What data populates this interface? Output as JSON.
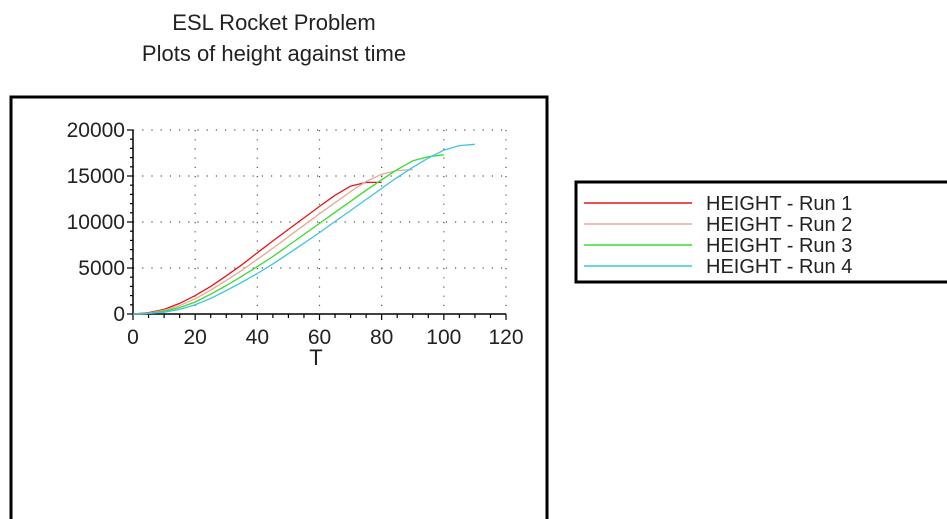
{
  "chart_data": {
    "type": "line",
    "title": "ESL Rocket Problem",
    "subtitle": "Plots of height against time",
    "xlabel": "T",
    "ylabel": "",
    "xlim": [
      0,
      120
    ],
    "ylim": [
      0,
      20000
    ],
    "x_ticks": [
      0,
      20,
      40,
      60,
      80,
      100,
      120
    ],
    "y_ticks": [
      0,
      5000,
      10000,
      15000,
      20000
    ],
    "x_tick_labels": [
      "0",
      "20",
      "40",
      "60",
      "80",
      "100",
      "120"
    ],
    "y_tick_labels": [
      "0",
      "5000",
      "10000",
      "15000",
      "20000"
    ],
    "grid": true,
    "legend_position": "right",
    "series": [
      {
        "name": "HEIGHT - Run 1",
        "color": "#e01818",
        "x": [
          0,
          5,
          10,
          15,
          20,
          25,
          30,
          35,
          40,
          45,
          50,
          55,
          60,
          65,
          70,
          75,
          80
        ],
        "y": [
          0,
          150,
          500,
          1150,
          2000,
          3000,
          4150,
          5350,
          6650,
          7950,
          9200,
          10450,
          11700,
          12900,
          13900,
          14300,
          14300
        ]
      },
      {
        "name": "HEIGHT - Run 2",
        "color": "#e8a898",
        "x": [
          0,
          5,
          10,
          15,
          20,
          25,
          30,
          35,
          40,
          45,
          50,
          55,
          60,
          65,
          70,
          75,
          80,
          85,
          90
        ],
        "y": [
          0,
          100,
          400,
          900,
          1650,
          2600,
          3650,
          4750,
          5950,
          7150,
          8400,
          9650,
          10900,
          12100,
          13300,
          14400,
          15200,
          15600,
          15700
        ]
      },
      {
        "name": "HEIGHT - Run 3",
        "color": "#38dc30",
        "x": [
          0,
          5,
          10,
          15,
          20,
          25,
          30,
          35,
          40,
          45,
          50,
          55,
          60,
          65,
          70,
          75,
          80,
          85,
          90,
          95,
          100
        ],
        "y": [
          0,
          80,
          300,
          700,
          1300,
          2150,
          3100,
          4100,
          5150,
          6250,
          7450,
          8650,
          9850,
          11050,
          12250,
          13450,
          14600,
          15700,
          16650,
          17100,
          17300
        ]
      },
      {
        "name": "HEIGHT - Run 4",
        "color": "#40c4e0",
        "x": [
          0,
          5,
          10,
          15,
          20,
          25,
          30,
          35,
          40,
          45,
          50,
          55,
          60,
          65,
          70,
          75,
          80,
          85,
          90,
          95,
          100,
          105,
          110
        ],
        "y": [
          0,
          50,
          200,
          500,
          1000,
          1700,
          2550,
          3450,
          4400,
          5450,
          6550,
          7700,
          8850,
          10050,
          11250,
          12450,
          13650,
          14850,
          15950,
          16950,
          17800,
          18300,
          18450
        ]
      }
    ]
  }
}
